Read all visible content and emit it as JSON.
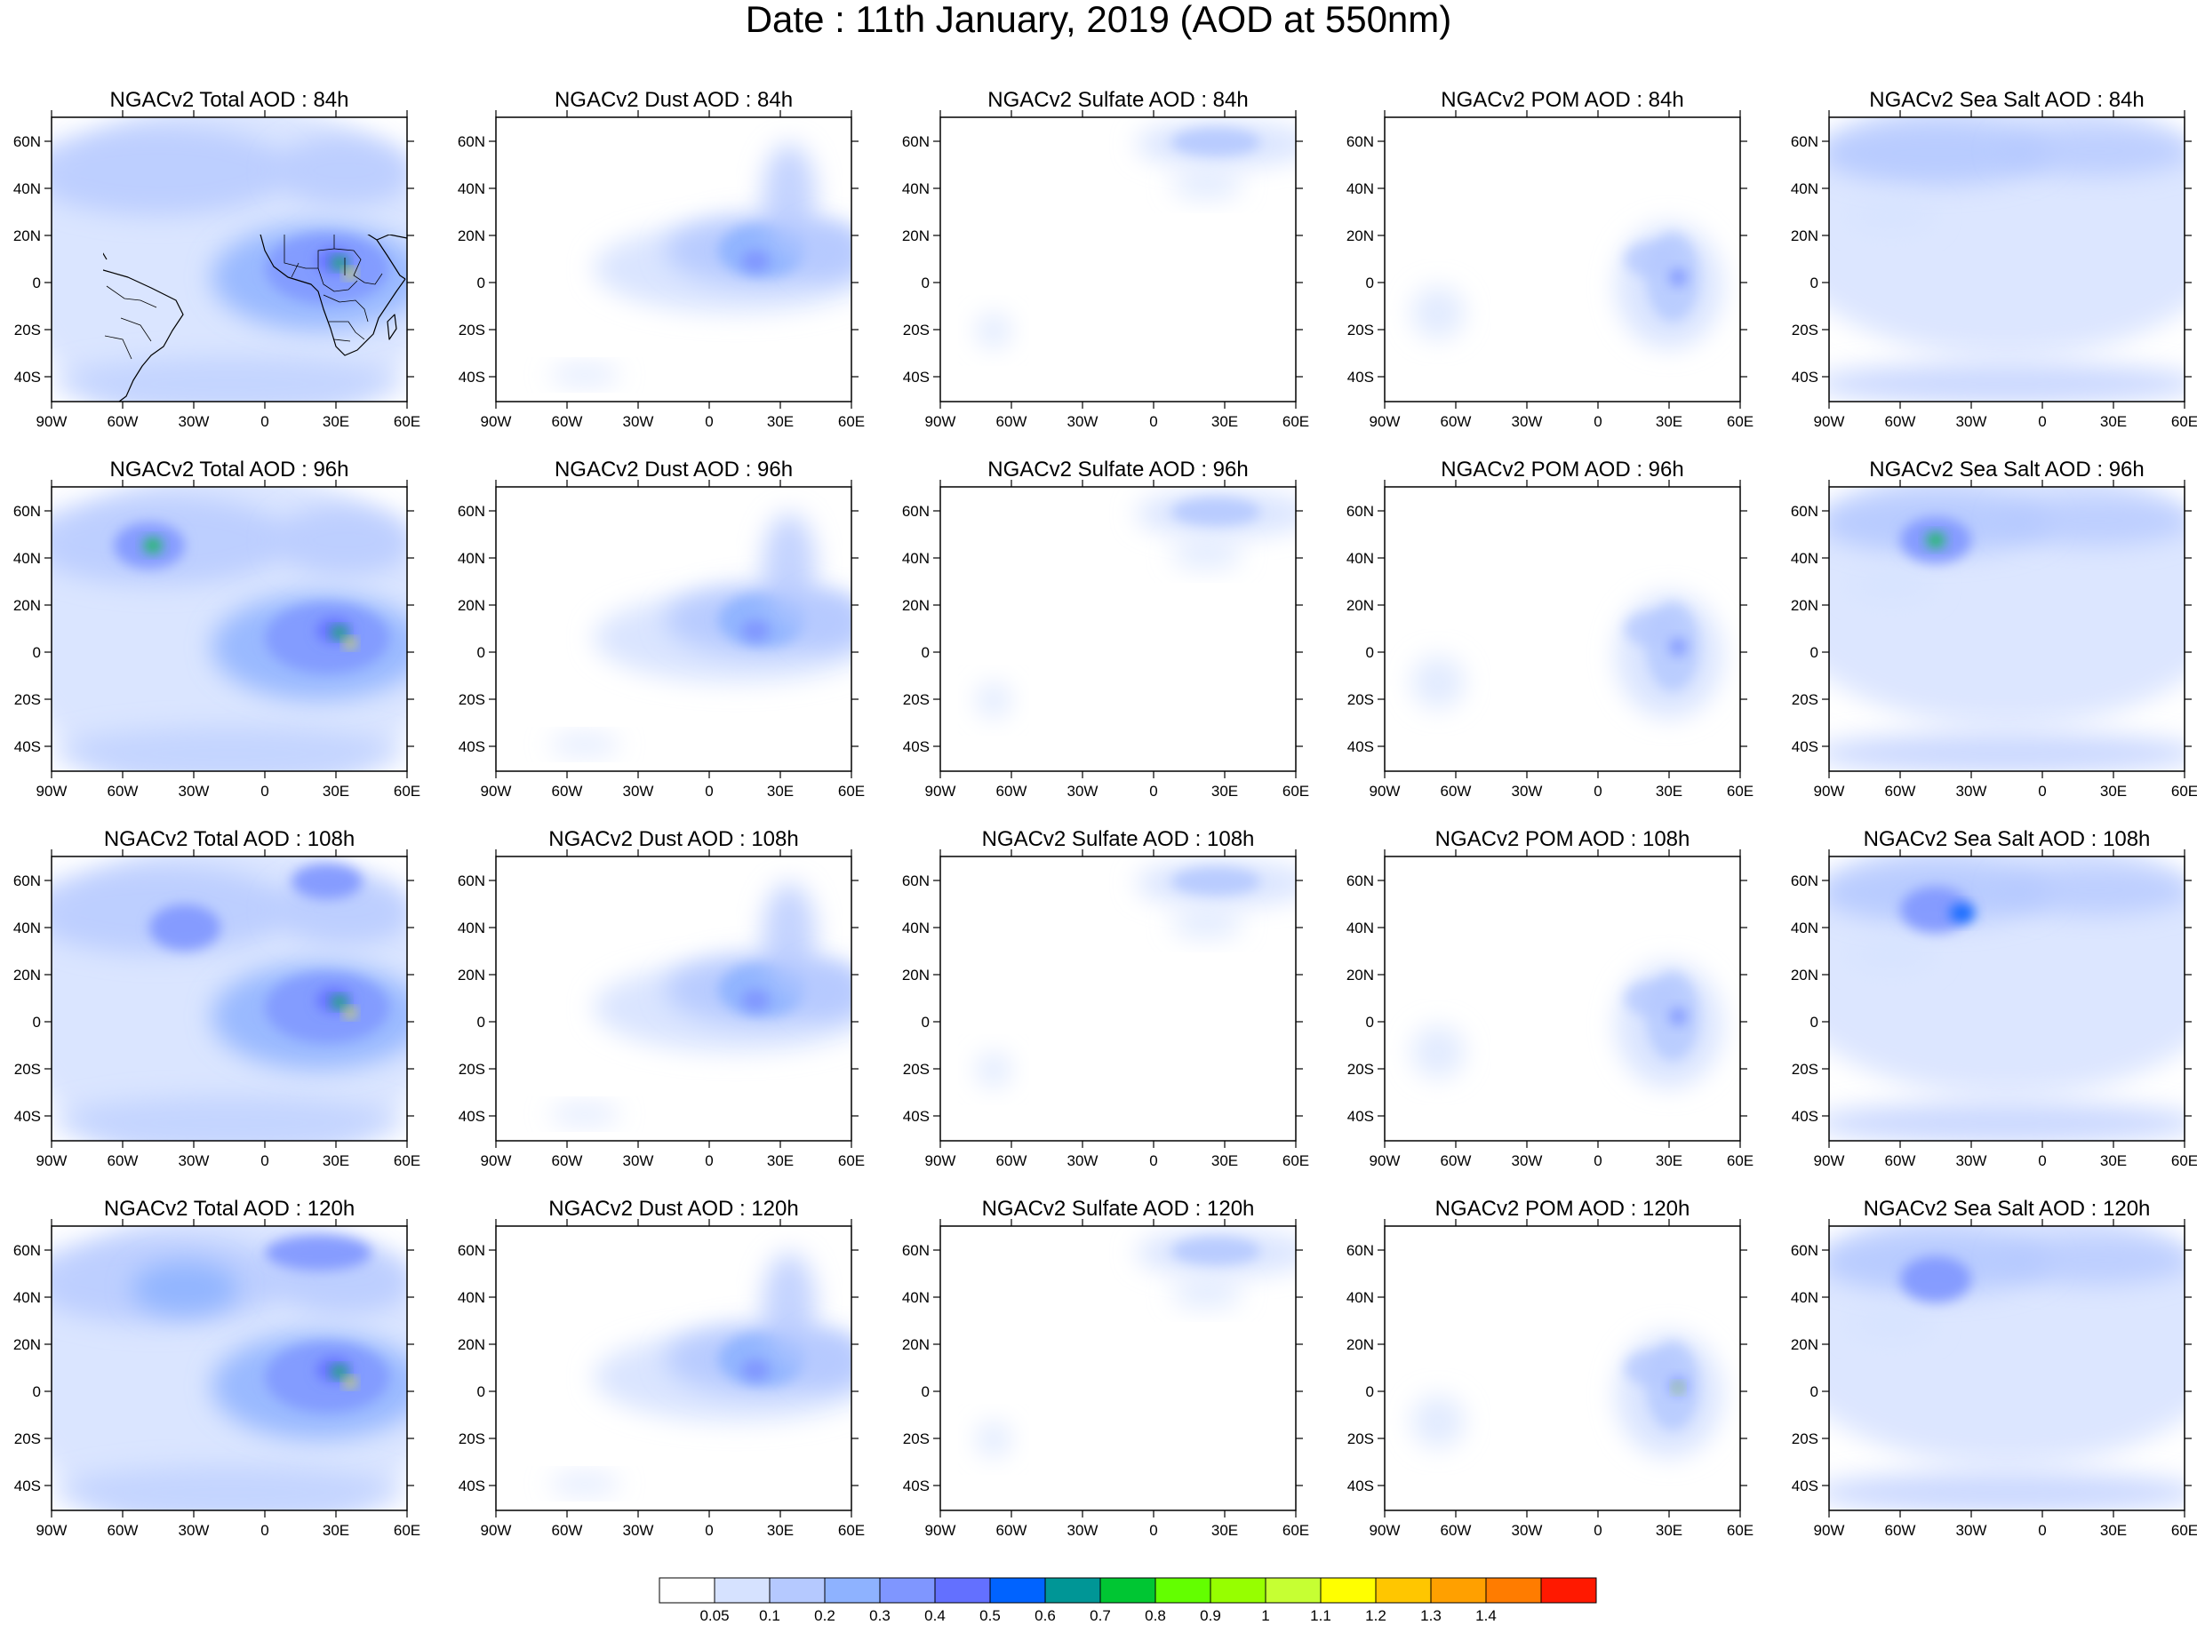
{
  "title": "Date : 11th January, 2019 (AOD at 550nm)",
  "lon_labels": [
    "90W",
    "60W",
    "30W",
    "0",
    "30E",
    "60E"
  ],
  "lat_labels": [
    "60N",
    "40N",
    "20N",
    "0",
    "20S",
    "40S"
  ],
  "rows": [
    {
      "panels": [
        "NGACv2 Total AOD : 84h",
        "NGACv2 Dust AOD : 84h",
        "NGACv2 Sulfate AOD : 84h",
        "NGACv2 POM AOD : 84h",
        "NGACv2 Sea Salt AOD : 84h"
      ]
    },
    {
      "panels": [
        "NGACv2 Total AOD : 96h",
        "NGACv2 Dust AOD : 96h",
        "NGACv2 Sulfate AOD : 96h",
        "NGACv2 POM AOD : 96h",
        "NGACv2 Sea Salt AOD : 96h"
      ]
    },
    {
      "panels": [
        "NGACv2 Total AOD : 108h",
        "NGACv2 Dust AOD : 108h",
        "NGACv2 Sulfate AOD : 108h",
        "NGACv2 POM AOD : 108h",
        "NGACv2 Sea Salt AOD : 108h"
      ]
    },
    {
      "panels": [
        "NGACv2 Total AOD : 120h",
        "NGACv2 Dust AOD : 120h",
        "NGACv2 Sulfate AOD : 120h",
        "NGACv2 POM AOD : 120h",
        "NGACv2 Sea Salt  AOD : 120h"
      ]
    }
  ],
  "colorbar": {
    "labels": [
      "0.05",
      "0.1",
      "0.2",
      "0.3",
      "0.4",
      "0.5",
      "0.6",
      "0.7",
      "0.8",
      "0.9",
      "1",
      "1.1",
      "1.2",
      "1.3",
      "1.4"
    ],
    "colors": [
      "#ffffff",
      "#d6e2ff",
      "#b5c9ff",
      "#8eb2ff",
      "#7f96ff",
      "#6370ff",
      "#0063ff",
      "#009696",
      "#00c633",
      "#63ff00",
      "#96ff00",
      "#c6ff33",
      "#ffff00",
      "#ffc600",
      "#ffa000",
      "#ff7c00",
      "#ff1900"
    ]
  }
}
